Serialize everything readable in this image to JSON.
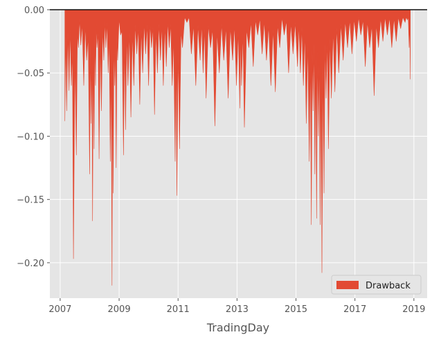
{
  "chart_data": {
    "type": "area",
    "title": "",
    "xlabel": "TradingDay",
    "ylabel": "",
    "xlim": [
      2006.65,
      2019.45
    ],
    "ylim": [
      -0.228,
      0.0
    ],
    "x_ticks": [
      2007,
      2009,
      2011,
      2013,
      2015,
      2017,
      2019
    ],
    "x_tick_labels": [
      "2007",
      "2009",
      "2011",
      "2013",
      "2015",
      "2017",
      "2019"
    ],
    "y_ticks": [
      0.0,
      -0.05,
      -0.1,
      -0.15,
      -0.2
    ],
    "y_tick_labels": [
      "0.00",
      "−0.05",
      "−0.10",
      "−0.15",
      "−0.20"
    ],
    "grid": true,
    "style": "ggplot",
    "legend": {
      "position": "bottom-right",
      "entries": [
        {
          "label": "Drawback",
          "color": "#E24A33"
        }
      ]
    },
    "series": [
      {
        "name": "Drawback",
        "color": "#E24A33",
        "x": [
          2007.16,
          2007.22,
          2007.3,
          2007.38,
          2007.45,
          2007.55,
          2007.62,
          2007.7,
          2007.8,
          2007.9,
          2008.0,
          2008.05,
          2008.1,
          2008.15,
          2008.2,
          2008.25,
          2008.32,
          2008.4,
          2008.48,
          2008.55,
          2008.63,
          2008.7,
          2008.76,
          2008.8,
          2008.85,
          2008.9,
          2008.95,
          2009.05,
          2009.15,
          2009.22,
          2009.3,
          2009.4,
          2009.5,
          2009.6,
          2009.7,
          2009.8,
          2009.9,
          2010.0,
          2010.1,
          2010.2,
          2010.3,
          2010.4,
          2010.5,
          2010.6,
          2010.7,
          2010.8,
          2010.9,
          2010.96,
          2011.05,
          2011.15,
          2011.3,
          2011.45,
          2011.6,
          2011.75,
          2011.85,
          2011.95,
          2012.1,
          2012.25,
          2012.4,
          2012.55,
          2012.7,
          2012.85,
          2012.98,
          2013.1,
          2013.15,
          2013.25,
          2013.4,
          2013.55,
          2013.7,
          2013.85,
          2014.0,
          2014.15,
          2014.3,
          2014.45,
          2014.6,
          2014.75,
          2014.9,
          2015.05,
          2015.15,
          2015.25,
          2015.35,
          2015.45,
          2015.52,
          2015.58,
          2015.64,
          2015.7,
          2015.76,
          2015.82,
          2015.88,
          2015.95,
          2016.02,
          2016.1,
          2016.2,
          2016.32,
          2016.45,
          2016.6,
          2016.75,
          2016.9,
          2017.05,
          2017.2,
          2017.35,
          2017.5,
          2017.65,
          2017.8,
          2017.95,
          2018.1,
          2018.25,
          2018.4,
          2018.55,
          2018.7,
          2018.78,
          2018.84,
          2018.88
        ],
        "values": [
          -0.088,
          -0.08,
          -0.064,
          -0.06,
          -0.197,
          -0.115,
          -0.03,
          -0.028,
          -0.06,
          -0.04,
          -0.13,
          -0.09,
          -0.167,
          -0.11,
          -0.06,
          -0.03,
          -0.118,
          -0.08,
          -0.04,
          -0.03,
          -0.05,
          -0.12,
          -0.218,
          -0.145,
          -0.06,
          -0.125,
          -0.04,
          -0.02,
          -0.115,
          -0.095,
          -0.06,
          -0.085,
          -0.06,
          -0.035,
          -0.075,
          -0.05,
          -0.035,
          -0.06,
          -0.03,
          -0.083,
          -0.05,
          -0.04,
          -0.06,
          -0.045,
          -0.03,
          -0.06,
          -0.12,
          -0.147,
          -0.11,
          -0.03,
          -0.01,
          -0.035,
          -0.06,
          -0.04,
          -0.05,
          -0.07,
          -0.03,
          -0.092,
          -0.05,
          -0.04,
          -0.07,
          -0.04,
          -0.06,
          -0.078,
          -0.06,
          -0.093,
          -0.03,
          -0.045,
          -0.02,
          -0.035,
          -0.04,
          -0.06,
          -0.065,
          -0.03,
          -0.02,
          -0.05,
          -0.035,
          -0.045,
          -0.05,
          -0.06,
          -0.09,
          -0.12,
          -0.17,
          -0.08,
          -0.13,
          -0.165,
          -0.1,
          -0.17,
          -0.208,
          -0.145,
          -0.07,
          -0.11,
          -0.07,
          -0.065,
          -0.05,
          -0.04,
          -0.03,
          -0.035,
          -0.025,
          -0.02,
          -0.045,
          -0.03,
          -0.068,
          -0.03,
          -0.025,
          -0.02,
          -0.03,
          -0.025,
          -0.015,
          -0.01,
          -0.008,
          -0.03,
          -0.055
        ]
      }
    ]
  }
}
